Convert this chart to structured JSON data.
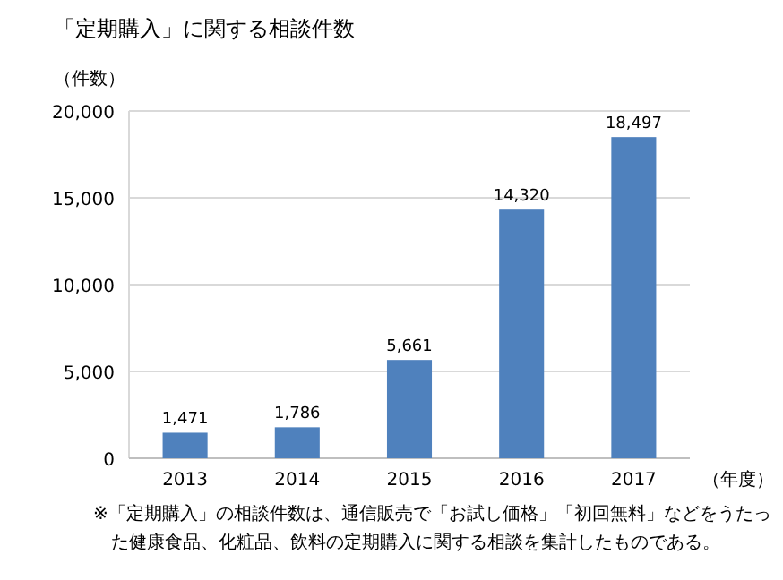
{
  "chart_data": {
    "type": "bar",
    "title": "「定期購入」に関する相談件数",
    "ylabel": "（件数）",
    "xlabel": "（年度）",
    "categories": [
      "2013",
      "2014",
      "2015",
      "2016",
      "2017"
    ],
    "values": [
      1471,
      1786,
      5661,
      14320,
      18497
    ],
    "color": "#4f81bd",
    "ylim": [
      0,
      20000
    ],
    "yticks": [
      0,
      {
        "value": 5000,
        "label": "5,000"
      },
      {
        "value": 10000,
        "label": "10,000"
      },
      {
        "value": 15000,
        "label": "15,000"
      },
      {
        "value": 20000,
        "label": "20,000"
      }
    ],
    "grid": "y",
    "value_labels": [
      "1,471",
      "1,786",
      "5,661",
      "14,320",
      "18,497"
    ],
    "annotations": [
      "※「定期購入」の相談件数は、通信販売で「お試し価格」「初回無料」などをうたった健康食品、化粧品、飲料の定期購入に関する相談を集計したものである。"
    ]
  }
}
